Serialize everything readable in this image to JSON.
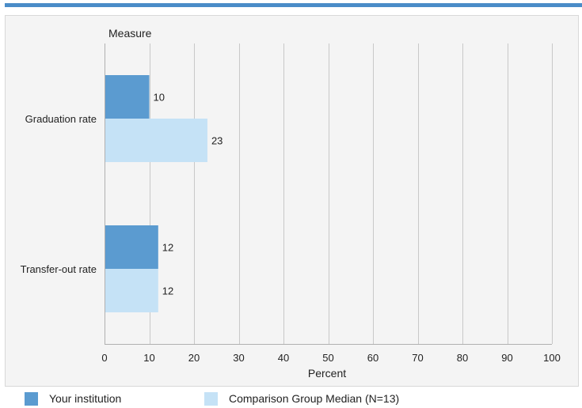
{
  "chart_data": {
    "type": "bar",
    "orientation": "horizontal",
    "title": "",
    "category_axis_label": "Measure",
    "xlabel": "Percent",
    "xlim": [
      0,
      100
    ],
    "x_ticks": [
      0,
      10,
      20,
      30,
      40,
      50,
      60,
      70,
      80,
      90,
      100
    ],
    "grid": true,
    "legend_position": "bottom",
    "categories": [
      "Graduation rate",
      "Transfer-out rate"
    ],
    "series": [
      {
        "name": "Your institution",
        "color": "#5b9bd0",
        "values": [
          10,
          12
        ]
      },
      {
        "name": "Comparison Group Median (N=13)",
        "color": "#c5e2f6",
        "values": [
          23,
          12
        ]
      }
    ]
  }
}
